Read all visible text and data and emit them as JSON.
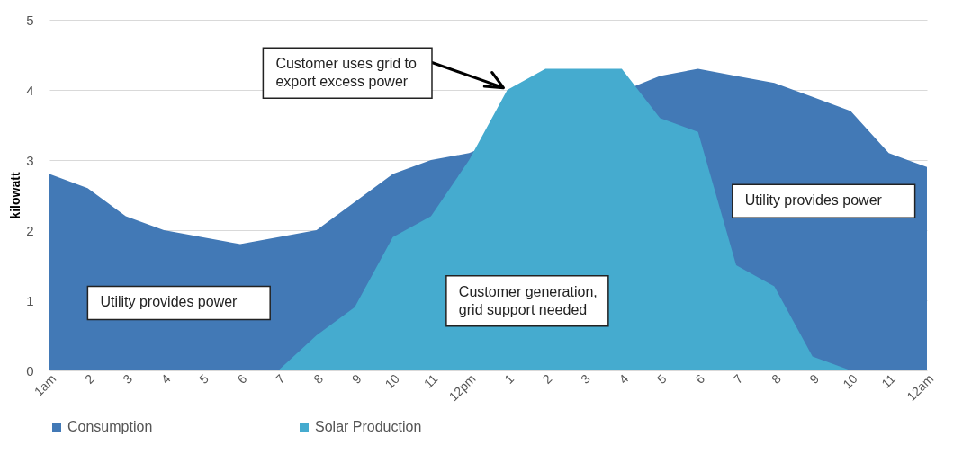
{
  "chart_data": {
    "type": "area",
    "ylabel": "kilowatt",
    "categories": [
      "1am",
      "2",
      "3",
      "4",
      "5",
      "6",
      "7",
      "8",
      "9",
      "10",
      "11",
      "12pm",
      "1",
      "2",
      "3",
      "4",
      "5",
      "6",
      "7",
      "8",
      "9",
      "10",
      "11",
      "12am"
    ],
    "series": [
      {
        "name": "Consumption",
        "color": "#4279b6",
        "values": [
          2.8,
          2.6,
          2.2,
          2.0,
          1.9,
          1.8,
          1.9,
          2.0,
          2.4,
          2.8,
          3.0,
          3.1,
          null,
          null,
          null,
          null,
          4.2,
          4.3,
          4.2,
          4.1,
          3.9,
          3.7,
          3.1,
          2.9
        ]
      },
      {
        "name": "Solar Production",
        "color": "#45abcf",
        "values": [
          null,
          null,
          null,
          null,
          null,
          null,
          0,
          0.5,
          0.9,
          1.9,
          2.2,
          3.0,
          4.0,
          4.3,
          4.3,
          4.3,
          3.6,
          3.4,
          1.5,
          1.2,
          0.2,
          0,
          null,
          null
        ]
      }
    ],
    "ylim": [
      0,
      5
    ],
    "yticks": [
      0,
      1,
      2,
      3,
      4,
      5
    ],
    "grid": "y",
    "legend": "bottom",
    "annotations": [
      "Customer uses grid to export excess power",
      "Utility provides  power",
      "Customer generation,  grid support needed",
      "Utility provides  power"
    ]
  }
}
